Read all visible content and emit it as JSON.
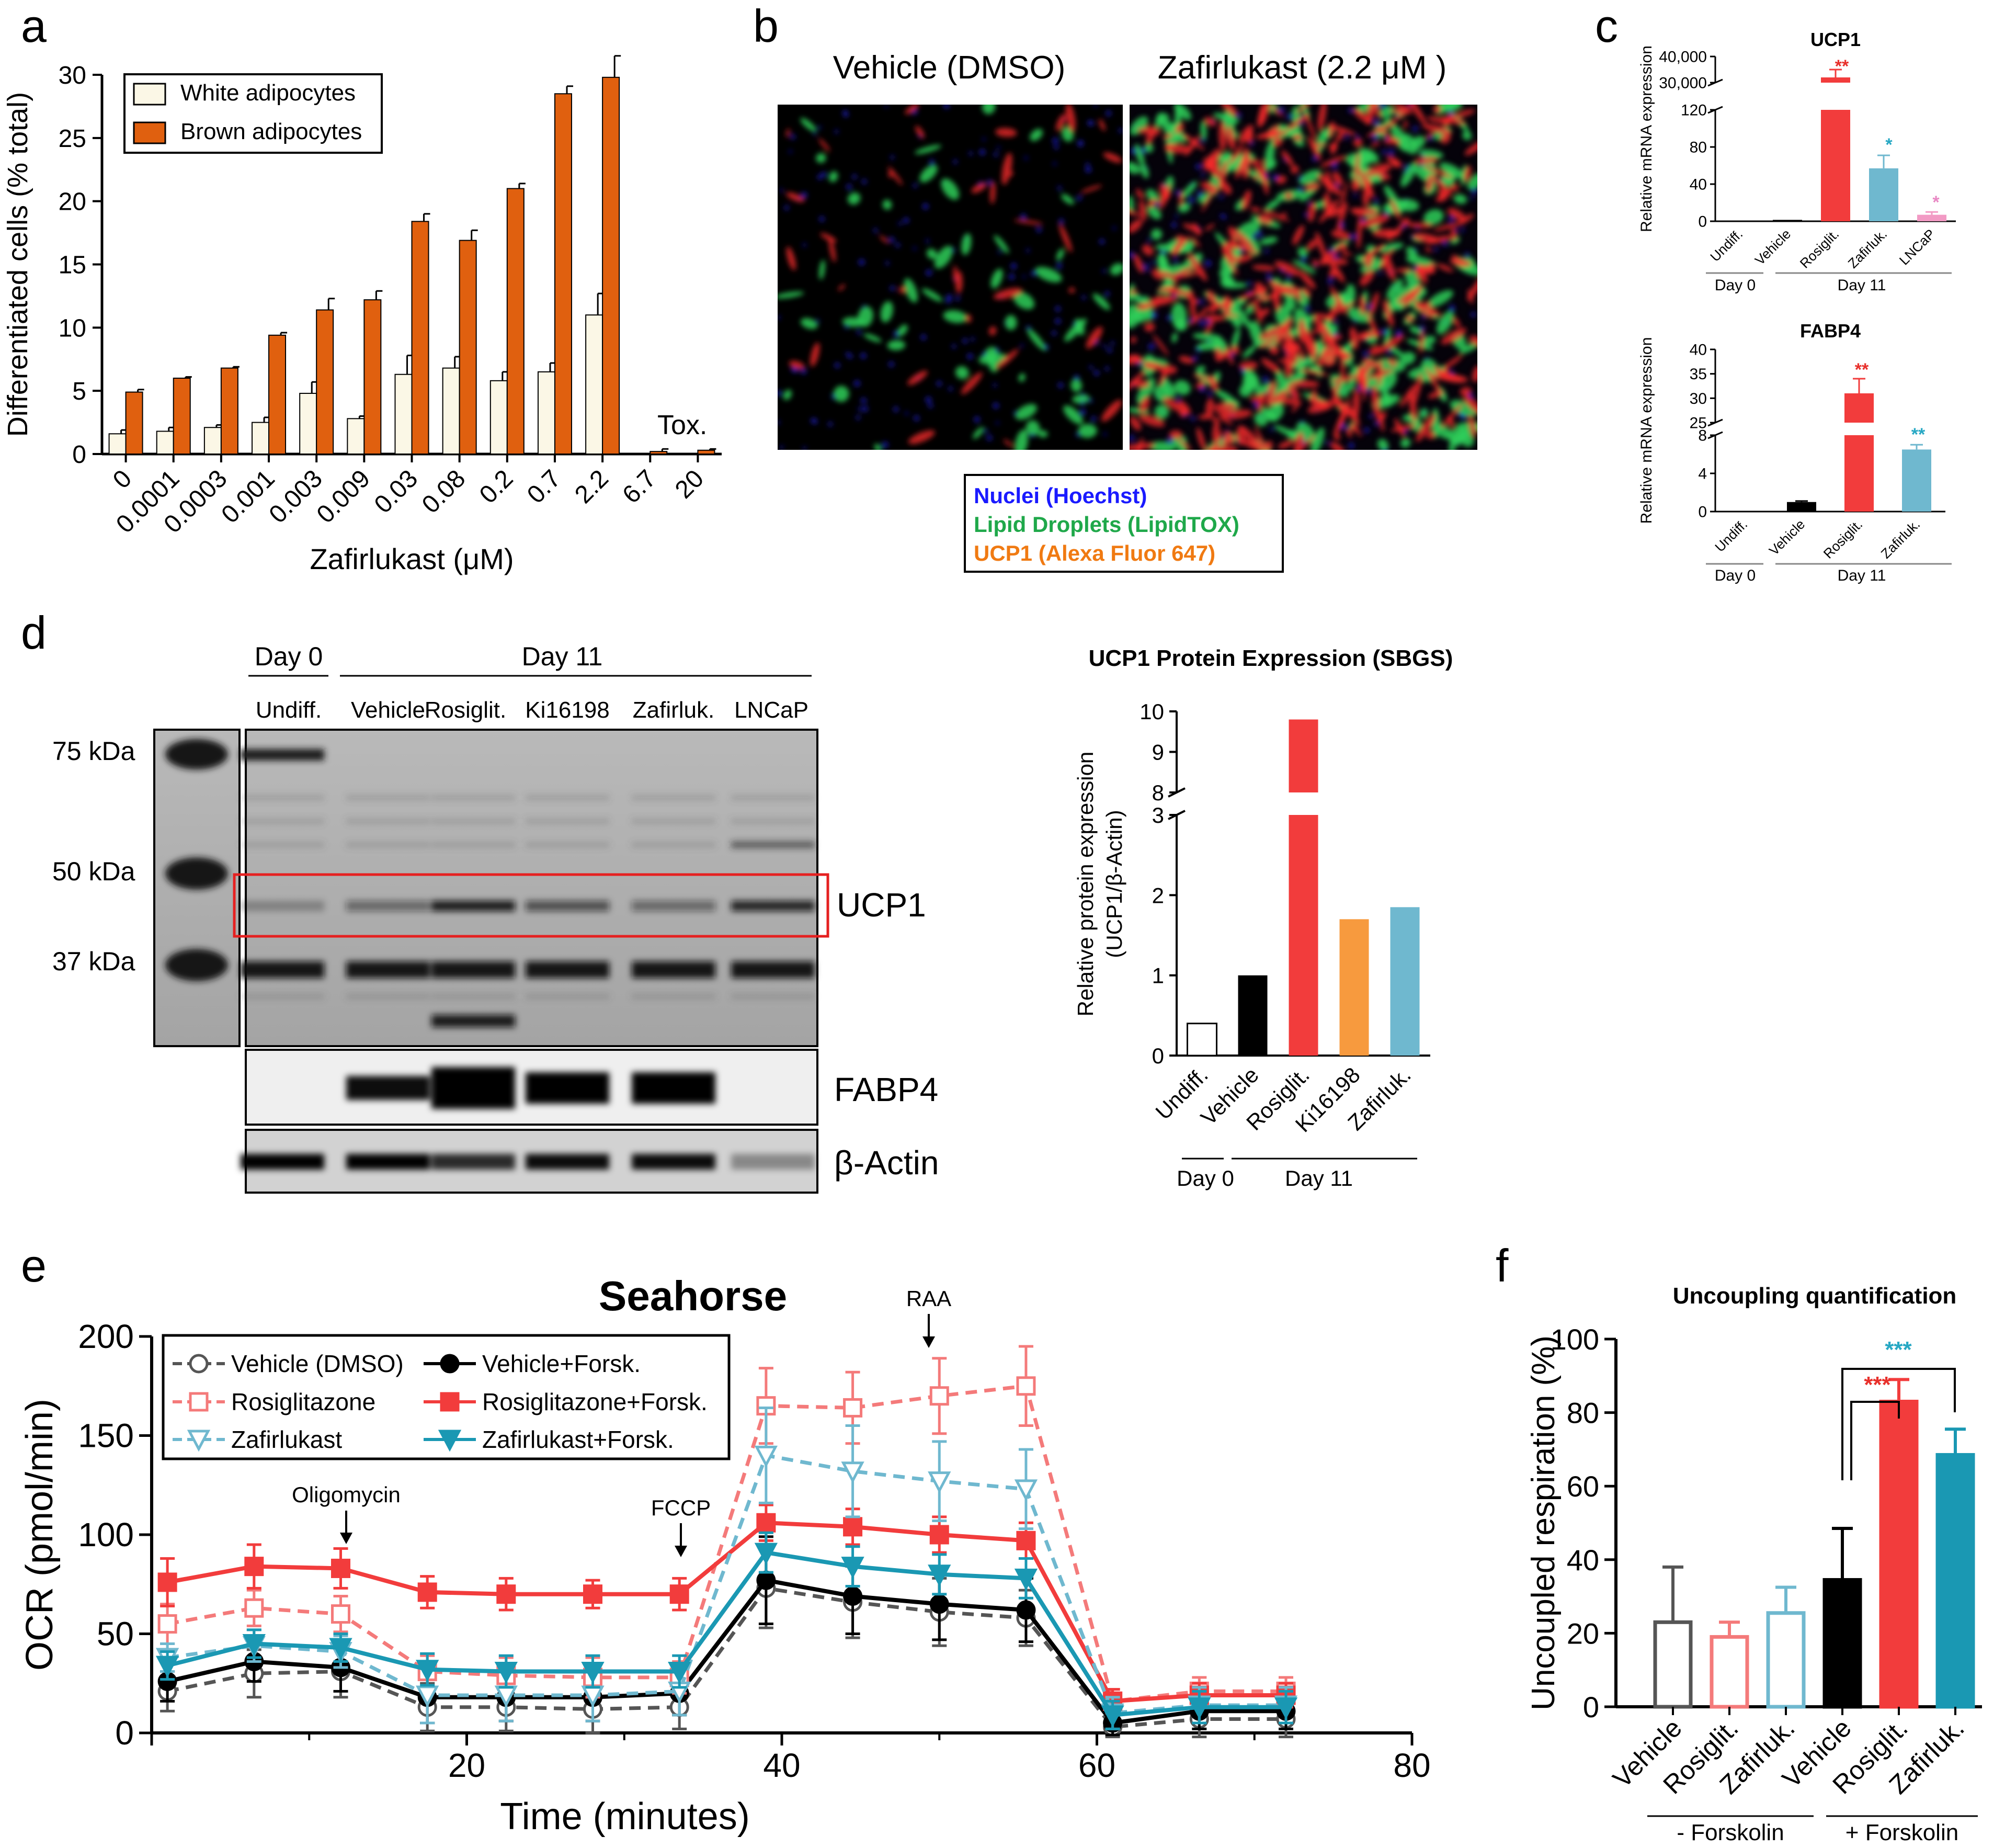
{
  "colors": {
    "white_bar": "#fbf7e6",
    "brown_bar": "#e0600f",
    "vehicle_black": "#000000",
    "rosi_red": "#f23c3c",
    "rosi_light": "#f47a7a",
    "zafi_blue": "#6fb8cf",
    "zafi_teal": "#1a98b3",
    "ki_orange": "#f79a3e",
    "lncap_pink": "#f29ac4",
    "nuclei_blue": "#1a1aff",
    "lipid_green": "#1fa84a",
    "ucp1_orange": "#f07a12",
    "sig_red": "#e8302b",
    "sig_teal": "#27a8c4",
    "sig_pink": "#e988c4",
    "box_red": "#e52020"
  },
  "panel_labels": {
    "a": "a",
    "b": "b",
    "c": "c",
    "d": "d",
    "e": "e",
    "f": "f"
  },
  "panel_a": {
    "legend_white": "White adipocytes",
    "legend_brown": "Brown adipocytes",
    "tox_label": "Tox."
  },
  "panel_b": {
    "vehicle_title": "Vehicle (DMSO)",
    "zafirlukast_title": "Zafirlukast (2.2 μM )",
    "legend_nuclei": "Nuclei (Hoechst)",
    "legend_lipid": "Lipid Droplets (LipidTOX)",
    "legend_ucp1": "UCP1 (Alexa Fluor 647)"
  },
  "panel_c": {
    "day0": "Day 0",
    "day11": "Day 11",
    "ucp1_sig": [
      "**",
      "*",
      "*"
    ],
    "fabp4_sig": [
      "**",
      "**"
    ]
  },
  "panel_d": {
    "day0_header": "Day 0",
    "day11_header": "Day 11",
    "lanes": [
      "Undiff.",
      "Vehicle",
      "Rosiglit.",
      "Ki16198",
      "Zafirluk.",
      "LNCaP"
    ],
    "markers": [
      "75 kDa",
      "50 kDa",
      "37 kDa"
    ],
    "band_ucp1": "UCP1",
    "band_fabp4": "FABP4",
    "band_actin": "β-Actin",
    "bar_day0": "Day 0",
    "bar_day11": "Day 11"
  },
  "panel_e": {
    "annotations": {
      "oligomycin": "Oligomycin",
      "fccp": "FCCP",
      "raa": "RAA"
    }
  },
  "panel_f": {
    "group_minus": "- Forskolin",
    "group_plus": "+ Forskolin",
    "sig_red": "***",
    "sig_teal": "***"
  },
  "chart_data": [
    {
      "id": "a",
      "type": "bar",
      "title": "",
      "xlabel": "Zafirlukast (μM)",
      "ylabel": "Differentiated cells (% total)",
      "ylim": [
        0,
        30
      ],
      "yticks": [
        0,
        5,
        10,
        15,
        20,
        25,
        30
      ],
      "categories": [
        "0",
        "0.0001",
        "0.0003",
        "0.001",
        "0.003",
        "0.009",
        "0.03",
        "0.08",
        "0.2",
        "0.7",
        "2.2",
        "6.7",
        "20"
      ],
      "series": [
        {
          "name": "White adipocytes",
          "color": "#fbf7e6",
          "values": [
            1.6,
            1.8,
            2.1,
            2.5,
            4.8,
            2.8,
            6.3,
            6.8,
            5.8,
            6.5,
            11.0,
            0,
            0
          ],
          "errors": [
            0.3,
            0.3,
            0.2,
            0.4,
            0.9,
            0.2,
            1.5,
            0.9,
            0.7,
            0.7,
            1.7,
            0,
            0
          ]
        },
        {
          "name": "Brown adipocytes",
          "color": "#e0600f",
          "values": [
            4.9,
            6.0,
            6.8,
            9.4,
            11.4,
            12.2,
            18.4,
            16.9,
            21.0,
            28.5,
            29.8,
            0.2,
            0.3
          ],
          "errors": [
            0.2,
            0.1,
            0.1,
            0.2,
            0.9,
            0.7,
            0.6,
            0.8,
            0.4,
            0.6,
            1.7,
            0.2,
            0.1
          ]
        }
      ]
    },
    {
      "id": "c1",
      "type": "bar",
      "title": "UCP1",
      "ylabel": "Relative mRNA expression",
      "categories": [
        "Undiff.",
        "Vehicle",
        "Rosiglit.",
        "Zafirluk.",
        "LNCaP"
      ],
      "values": [
        0.5,
        1.5,
        32000,
        57,
        7
      ],
      "errors": [
        0,
        0,
        3000,
        14,
        3
      ],
      "colors": [
        "#000000",
        "#000000",
        "#f23c3c",
        "#6fb8cf",
        "#f29ac4"
      ],
      "lower_ticks": [
        0,
        40,
        80,
        120
      ],
      "upper_ticks": [
        30000,
        40000
      ],
      "upper_tick_labels": [
        "30,000",
        "40,000"
      ]
    },
    {
      "id": "c2",
      "type": "bar",
      "title": "FABP4",
      "ylabel": "Relative mRNA expression",
      "categories": [
        "Undiff.",
        "Vehicle",
        "Rosiglit.",
        "Zafirluk."
      ],
      "values": [
        0.05,
        1.0,
        31,
        6.5
      ],
      "errors": [
        0,
        0.1,
        3,
        0.5
      ],
      "colors": [
        "#000000",
        "#000000",
        "#f23c3c",
        "#6fb8cf"
      ],
      "lower_ticks": [
        0,
        4,
        8
      ],
      "upper_ticks": [
        25,
        30,
        35,
        40
      ]
    },
    {
      "id": "d",
      "type": "bar",
      "title": "UCP1 Protein Expression (SBGS)",
      "ylabel": "Relative protein expression (UCP1/β-Actin)",
      "categories": [
        "Undiff.",
        "Vehicle",
        "Rosiglit.",
        "Ki16198",
        "Zafirluk."
      ],
      "values": [
        0.4,
        1.0,
        9.8,
        1.7,
        1.85
      ],
      "colors": [
        "#ffffff",
        "#000000",
        "#f23c3c",
        "#f79a3e",
        "#6fb8cf"
      ],
      "lower_ticks": [
        0,
        1,
        2,
        3
      ],
      "upper_ticks": [
        8,
        9,
        10
      ]
    },
    {
      "id": "e",
      "type": "line",
      "title": "Seahorse",
      "xlabel": "Time (minutes)",
      "ylabel": "OCR (pmol/min)",
      "xlim": [
        0,
        80
      ],
      "ylim": [
        0,
        200
      ],
      "xticks": [
        20,
        40,
        60,
        80
      ],
      "yticks": [
        0,
        50,
        100,
        150,
        200
      ],
      "x": [
        1,
        6.5,
        12,
        17.5,
        22.5,
        28,
        33.5,
        39,
        44.5,
        50,
        55.5,
        61,
        66.5,
        72
      ],
      "series": [
        {
          "name": "Vehicle (DMSO)",
          "color": "#555555",
          "dash": true,
          "marker": "circle-open",
          "values": [
            21,
            30,
            31,
            13,
            13,
            12,
            13,
            73,
            66,
            61,
            58,
            3,
            7,
            7
          ],
          "errors": [
            10,
            12,
            13,
            12,
            12,
            12,
            11,
            20,
            18,
            17,
            14,
            5,
            9,
            9
          ]
        },
        {
          "name": "Vehicle+Forsk.",
          "color": "#000000",
          "dash": false,
          "marker": "circle",
          "values": [
            26,
            36,
            33,
            18,
            18,
            18,
            20,
            77,
            69,
            65,
            62,
            5,
            11,
            11
          ],
          "errors": [
            10,
            10,
            12,
            13,
            12,
            12,
            11,
            22,
            19,
            18,
            16,
            6,
            9,
            9
          ]
        },
        {
          "name": "Rosiglitazone",
          "color": "#f47a7a",
          "dash": true,
          "marker": "square-open",
          "values": [
            55,
            63,
            60,
            31,
            29,
            28,
            28,
            165,
            164,
            170,
            175,
            16,
            21,
            21
          ],
          "errors": [
            10,
            9,
            9,
            8,
            9,
            10,
            8,
            19,
            18,
            19,
            20,
            6,
            7,
            7
          ]
        },
        {
          "name": "Rosiglitazone+Forsk.",
          "color": "#f23c3c",
          "dash": false,
          "marker": "square",
          "values": [
            76,
            84,
            83,
            71,
            70,
            70,
            70,
            106,
            104,
            100,
            97,
            16,
            19,
            19
          ],
          "errors": [
            12,
            11,
            10,
            8,
            8,
            7,
            8,
            9,
            9,
            9,
            9,
            6,
            6,
            6
          ]
        },
        {
          "name": "Zafirlukast",
          "color": "#6fb8cf",
          "dash": true,
          "marker": "triangle-open",
          "values": [
            38,
            44,
            41,
            19,
            19,
            19,
            21,
            140,
            132,
            127,
            123,
            10,
            14,
            14
          ],
          "errors": [
            7,
            8,
            8,
            14,
            13,
            13,
            12,
            24,
            23,
            20,
            20,
            8,
            9,
            9
          ]
        },
        {
          "name": "Zafirlukast+Forsk.",
          "color": "#1a98b3",
          "dash": false,
          "marker": "triangle",
          "values": [
            34,
            45,
            43,
            32,
            31,
            31,
            31,
            91,
            84,
            80,
            78,
            9,
            13,
            13
          ],
          "errors": [
            7,
            7,
            7,
            8,
            8,
            8,
            8,
            10,
            10,
            10,
            10,
            7,
            8,
            8
          ]
        }
      ]
    },
    {
      "id": "f",
      "type": "bar",
      "title": "Uncoupling quantification",
      "ylabel": "Uncoupled respiration (%)",
      "ylim": [
        0,
        100
      ],
      "yticks": [
        0,
        20,
        40,
        60,
        80,
        100
      ],
      "categories": [
        "Vehicle",
        "Rosiglit.",
        "Zafirluk.",
        "Vehicle",
        "Rosiglit.",
        "Zafirluk."
      ],
      "values": [
        23,
        19,
        25.5,
        34.5,
        83,
        68.5
      ],
      "errors": [
        15,
        4,
        7,
        14,
        6,
        7
      ],
      "fill": [
        "none",
        "none",
        "none",
        "#000000",
        "#f23c3c",
        "#1a98b3"
      ],
      "stroke": [
        "#555555",
        "#f47a7a",
        "#6fb8cf",
        "#000000",
        "#f23c3c",
        "#1a98b3"
      ]
    }
  ]
}
